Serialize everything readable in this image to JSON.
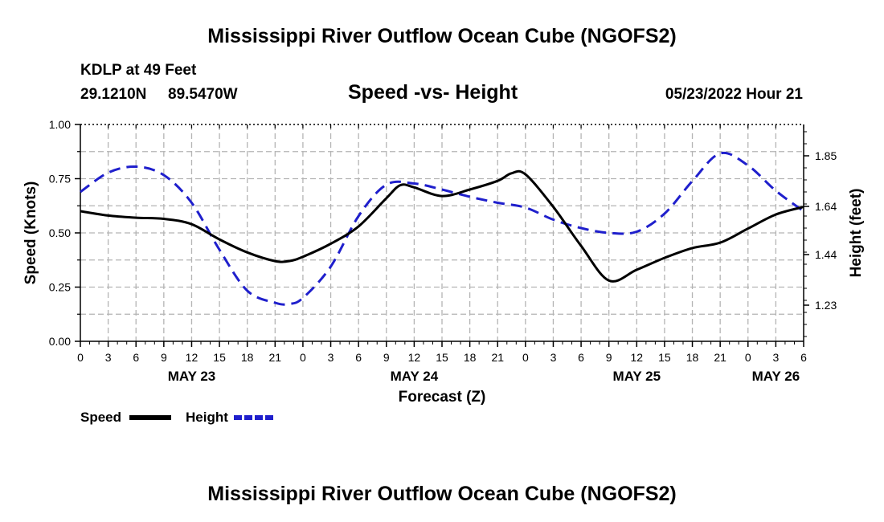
{
  "page": {
    "title": "Mississippi River Outflow Ocean Cube (NGOFS2)",
    "footer_title": "Mississippi River Outflow Ocean Cube (NGOFS2)",
    "station": "KDLP at 49 Feet",
    "lat": "29.1210N",
    "lon": "89.5470W",
    "subtitle": "Speed -vs- Height",
    "datetime": "05/23/2022 Hour 21"
  },
  "legend": {
    "speed_label": "Speed",
    "height_label": "Height"
  },
  "colors": {
    "speed": "#000000",
    "height": "#1f1fcc",
    "grid": "#b4b4b4"
  },
  "chart_data": {
    "type": "line",
    "title": "Speed -vs- Height",
    "xlabel": "Forecast (Z)",
    "ylabel": "Speed (Knots)",
    "y2label": "Height (feet)",
    "x_unit": "hours from 00Z May 23",
    "xlim": [
      0,
      78
    ],
    "ylim": [
      0,
      1
    ],
    "y2lim": [
      1.08,
      1.98
    ],
    "yticks": [
      0.0,
      0.25,
      0.5,
      0.75,
      1.0
    ],
    "ytick_labels": [
      "0.00",
      "0.25",
      "0.50",
      "0.75",
      "1.00"
    ],
    "y2ticks": [
      1.23,
      1.44,
      1.64,
      1.85
    ],
    "y2tick_labels": [
      "1.23",
      "1.44",
      "1.64",
      "1.85"
    ],
    "xticks": [
      0,
      3,
      6,
      9,
      12,
      15,
      18,
      21,
      24,
      27,
      30,
      33,
      36,
      39,
      42,
      45,
      48,
      51,
      54,
      57,
      60,
      63,
      66,
      69,
      72,
      75,
      78
    ],
    "xtick_labels": [
      "0",
      "3",
      "6",
      "9",
      "12",
      "15",
      "18",
      "21",
      "0",
      "3",
      "6",
      "9",
      "12",
      "15",
      "18",
      "21",
      "0",
      "3",
      "6",
      "9",
      "12",
      "15",
      "18",
      "21",
      "0",
      "3",
      "6"
    ],
    "day_labels": [
      {
        "x": 12,
        "label": "MAY 23"
      },
      {
        "x": 36,
        "label": "MAY 24"
      },
      {
        "x": 60,
        "label": "MAY 25"
      },
      {
        "x": 75,
        "label": "MAY 26"
      }
    ],
    "series": [
      {
        "name": "Speed",
        "axis": "left",
        "style": "solid",
        "x": [
          0,
          3,
          6,
          9,
          12,
          15,
          18,
          21,
          22.5,
          24,
          27,
          30,
          33,
          34.5,
          36,
          39,
          42,
          45,
          46.5,
          48,
          51,
          54,
          57,
          60,
          63,
          66,
          69,
          72,
          75,
          78
        ],
        "values": [
          0.6,
          0.58,
          0.57,
          0.565,
          0.54,
          0.47,
          0.41,
          0.37,
          0.37,
          0.39,
          0.45,
          0.53,
          0.66,
          0.72,
          0.71,
          0.67,
          0.7,
          0.74,
          0.775,
          0.77,
          0.62,
          0.44,
          0.28,
          0.33,
          0.385,
          0.43,
          0.455,
          0.52,
          0.585,
          0.62
        ]
      },
      {
        "name": "Height",
        "axis": "right",
        "style": "dashed",
        "x": [
          0,
          3,
          6,
          9,
          12,
          15,
          18,
          21,
          22.5,
          24,
          27,
          30,
          33,
          36,
          39,
          42,
          45,
          48,
          51,
          54,
          57,
          60,
          63,
          66,
          69,
          72,
          75,
          78
        ],
        "values": [
          1.7,
          1.78,
          1.805,
          1.77,
          1.655,
          1.46,
          1.29,
          1.24,
          1.235,
          1.26,
          1.39,
          1.6,
          1.73,
          1.735,
          1.71,
          1.68,
          1.655,
          1.635,
          1.585,
          1.55,
          1.53,
          1.535,
          1.61,
          1.745,
          1.86,
          1.81,
          1.705,
          1.62
        ]
      }
    ]
  }
}
